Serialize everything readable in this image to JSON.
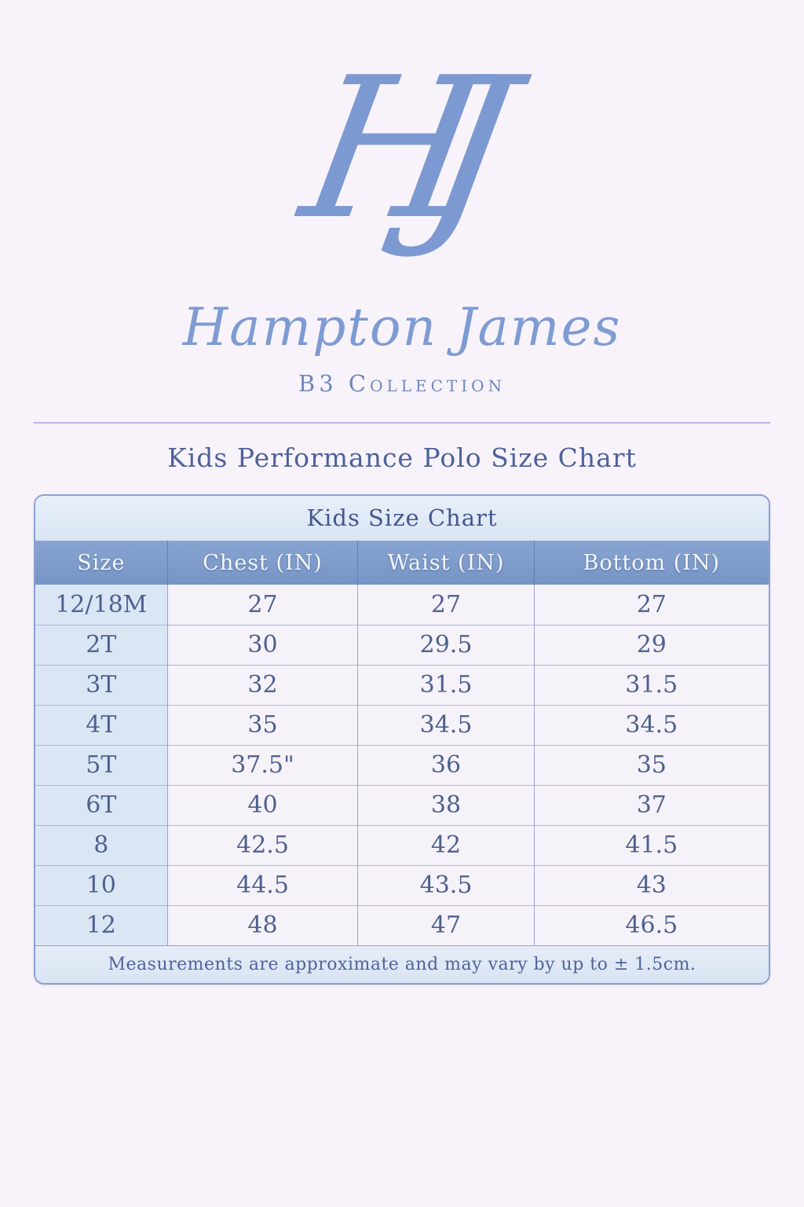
{
  "page_background": "#f8f3fa",
  "brand": {
    "monogram": "HJ",
    "name": "Hampton James",
    "collection": "B3 Collection",
    "accent_color": "#7d99d2"
  },
  "page_title": "Kids Performance Polo Size Chart",
  "chart_data": {
    "type": "table",
    "title": "Kids Size Chart",
    "columns": [
      "Size",
      "Chest (IN)",
      "Waist (IN)",
      "Bottom (IN)"
    ],
    "rows": [
      [
        "12/18M",
        "27",
        "27",
        "27"
      ],
      [
        "2T",
        "30",
        "29.5",
        "29"
      ],
      [
        "3T",
        "32",
        "31.5",
        "31.5"
      ],
      [
        "4T",
        "35",
        "34.5",
        "34.5"
      ],
      [
        "5T",
        "37.5\"",
        "36",
        "35"
      ],
      [
        "6T",
        "40",
        "38",
        "37"
      ],
      [
        "8",
        "42.5",
        "42",
        "41.5"
      ],
      [
        "10",
        "44.5",
        "43.5",
        "43"
      ],
      [
        "12",
        "48",
        "47",
        "46.5"
      ]
    ],
    "footnote": "Measurements are approximate and may vary by up to ± 1.5cm.",
    "layout": {
      "grid": "on",
      "header_position": "top"
    },
    "colors": {
      "header_bg": "#7e9bcb",
      "header_text": "#f4f7fc",
      "title_row_bg": "#dee9f7",
      "size_column_bg": "#dbe6f5",
      "cell_bg": "#f6f2f9",
      "card_border": "#8ba0d0",
      "grid_line": "#9dadd2",
      "body_text": "#4d618e",
      "title_text": "#4e629b",
      "divider": "#b9b4e0"
    }
  }
}
